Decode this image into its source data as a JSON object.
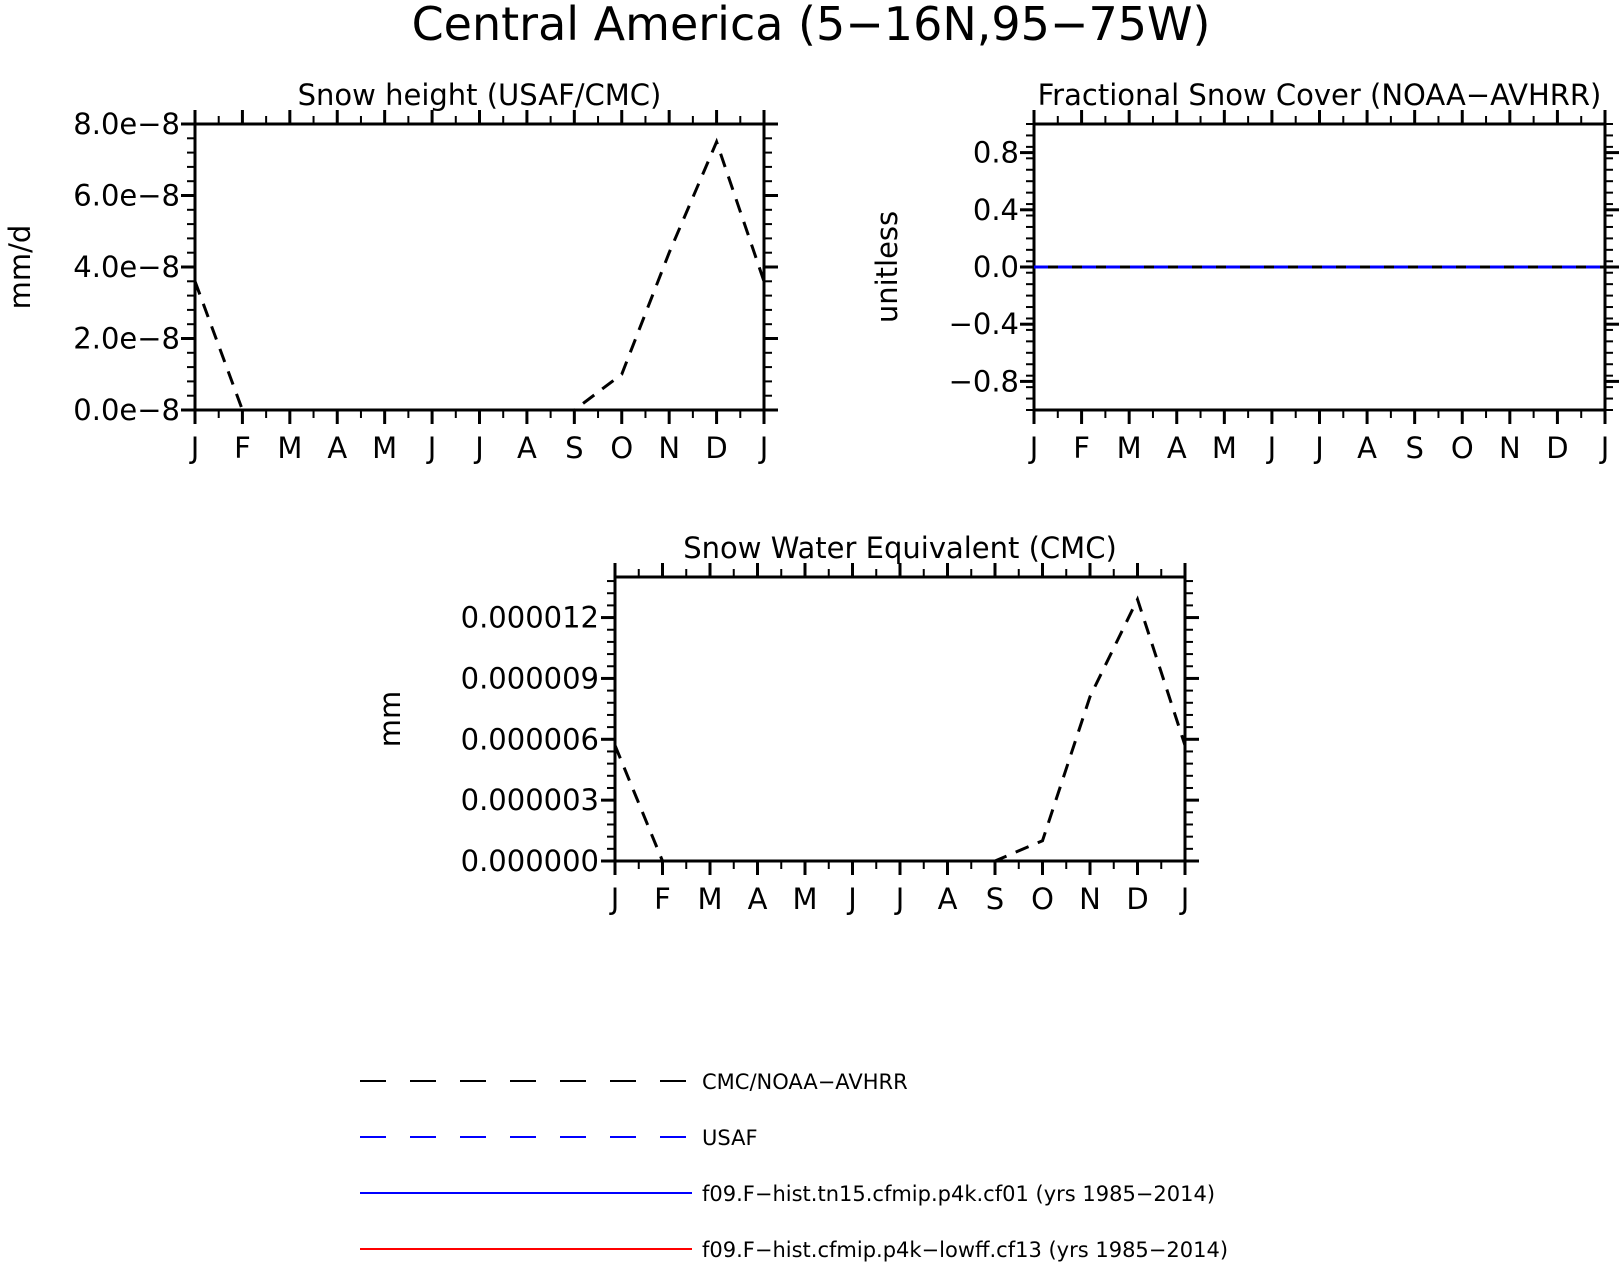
{
  "figure_title": "Central America (5−16N,95−75W)",
  "legend": [
    {
      "label": "CMC/NOAA−AVHRR",
      "color": "#000000",
      "dash": "dashed"
    },
    {
      "label": "USAF",
      "color": "#0000ff",
      "dash": "dashed"
    },
    {
      "label": "f09.F−hist.tn15.cfmip.p4k.cf01 (yrs 1985−2014)",
      "color": "#0000ff",
      "dash": "solid"
    },
    {
      "label": "f09.F−hist.cfmip.p4k−lowff.cf13 (yrs 1985−2014)",
      "color": "#ff0000",
      "dash": "solid"
    }
  ],
  "chart_data": [
    {
      "type": "line",
      "title": "Snow height (USAF/CMC)",
      "xlabel": "",
      "ylabel": "mm/d",
      "categories": [
        "J",
        "F",
        "M",
        "A",
        "M",
        "J",
        "J",
        "A",
        "S",
        "O",
        "N",
        "D",
        "J"
      ],
      "ylim": [
        0,
        8e-08
      ],
      "yticks": [
        0,
        2e-08,
        4e-08,
        6e-08,
        8e-08
      ],
      "ytick_labels": [
        "0.0e−8",
        "2.0e−8",
        "4.0e−8",
        "6.0e−8",
        "8.0e−8"
      ],
      "series": [
        {
          "name": "CMC/NOAA−AVHRR",
          "color": "#000000",
          "dash": "dashed",
          "values": [
            3.6e-08,
            0,
            0,
            0,
            0,
            0,
            0,
            0,
            0,
            1e-08,
            4.4e-08,
            7.5e-08,
            3.6e-08
          ]
        }
      ]
    },
    {
      "type": "line",
      "title": "Fractional Snow Cover (NOAA−AVHRR)",
      "xlabel": "",
      "ylabel": "unitless",
      "categories": [
        "J",
        "F",
        "M",
        "A",
        "M",
        "J",
        "J",
        "A",
        "S",
        "O",
        "N",
        "D",
        "J"
      ],
      "ylim": [
        -1,
        1
      ],
      "yticks": [
        -0.8,
        -0.4,
        0.0,
        0.4,
        0.8
      ],
      "ytick_labels": [
        "−0.8",
        "−0.4",
        "0.0",
        "0.4",
        "0.8"
      ],
      "series": [
        {
          "name": "CMC/NOAA−AVHRR",
          "color": "#000000",
          "dash": "solid",
          "values": [
            0,
            0,
            0,
            0,
            0,
            0,
            0,
            0,
            0,
            0,
            0,
            0,
            0
          ]
        },
        {
          "name": "USAF",
          "color": "#0000ff",
          "dash": "dashed",
          "values": [
            0,
            0,
            0,
            0,
            0,
            0,
            0,
            0,
            0,
            0,
            0,
            0,
            0
          ]
        }
      ]
    },
    {
      "type": "line",
      "title": "Snow Water Equivalent (CMC)",
      "xlabel": "",
      "ylabel": "mm",
      "categories": [
        "J",
        "F",
        "M",
        "A",
        "M",
        "J",
        "J",
        "A",
        "S",
        "O",
        "N",
        "D",
        "J"
      ],
      "ylim": [
        0,
        1.4e-05
      ],
      "yticks": [
        0,
        3e-06,
        6e-06,
        9e-06,
        1.2e-05
      ],
      "ytick_labels": [
        "0.000000",
        "0.000003",
        "0.000006",
        "0.000009",
        "0.000012"
      ],
      "series": [
        {
          "name": "CMC/NOAA−AVHRR",
          "color": "#000000",
          "dash": "dashed",
          "values": [
            5.7e-06,
            0,
            0,
            0,
            0,
            0,
            0,
            0,
            0,
            1e-06,
            8.1e-06,
            1.29e-05,
            5.7e-06
          ]
        }
      ]
    }
  ]
}
